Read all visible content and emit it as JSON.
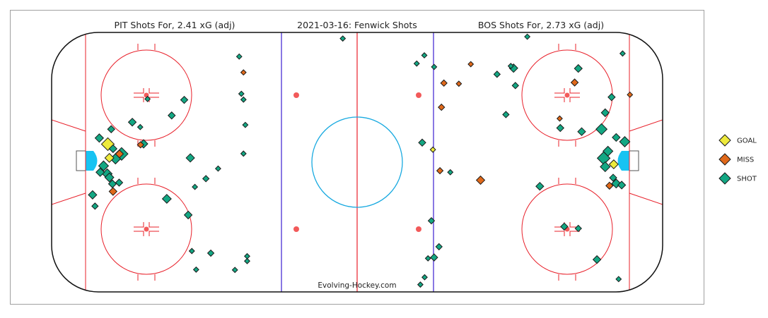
{
  "chart_data": {
    "type": "scatter",
    "titles": {
      "left": "PIT Shots For, 2.41 xG (adj)",
      "center": "2021-03-16:  Fenwick Shots",
      "right": "BOS Shots For, 2.73 xG (adj)"
    },
    "credit": "Evolving-Hockey.com",
    "legend": [
      {
        "label": "GOAL",
        "color": "#eeea3c"
      },
      {
        "label": "MISS",
        "color": "#e0691a"
      },
      {
        "label": "SHOT",
        "color": "#13a783"
      }
    ],
    "colors": {
      "goal": "#eeea3c",
      "miss": "#e0691a",
      "shot": "#13a783",
      "red_line": "#e8202a",
      "blue_line": "#3b1fd0",
      "crease": "#17c3f2",
      "center_circle": "#17a9e0",
      "dot": "#f25a5a"
    },
    "x_range": [
      -100,
      100
    ],
    "y_range": [
      -42.5,
      42.5
    ],
    "series": [
      {
        "name": "PIT",
        "shots": [
          {
            "x": -81.6,
            "y": 5.9,
            "result": "GOAL",
            "xg": 0.16
          },
          {
            "x": -81.1,
            "y": 1.4,
            "result": "GOAL",
            "xg": 0.06
          },
          {
            "x": -77.8,
            "y": 2.7,
            "result": "MISS",
            "xg": 0.04
          },
          {
            "x": -70.9,
            "y": 5.7,
            "result": "MISS",
            "xg": 0.02
          },
          {
            "x": -79.9,
            "y": -9.6,
            "result": "MISS",
            "xg": 0.04
          },
          {
            "x": -77.1,
            "y": 2.7,
            "result": "SHOT",
            "xg": 0.16
          },
          {
            "x": -79.1,
            "y": 1.1,
            "result": "SHOT",
            "xg": 0.09
          },
          {
            "x": -83.0,
            "y": -1.2,
            "result": "SHOT",
            "xg": 0.08
          },
          {
            "x": -84.1,
            "y": -3.3,
            "result": "SHOT",
            "xg": 0.05
          },
          {
            "x": -81.8,
            "y": -3.8,
            "result": "SHOT",
            "xg": 0.08
          },
          {
            "x": -81.1,
            "y": -5.0,
            "result": "SHOT",
            "xg": 0.06
          },
          {
            "x": -80.1,
            "y": -7.1,
            "result": "SHOT",
            "xg": 0.04
          },
          {
            "x": -79.9,
            "y": 4.4,
            "result": "SHOT",
            "xg": 0.04
          },
          {
            "x": -80.5,
            "y": 10.8,
            "result": "SHOT",
            "xg": 0.03
          },
          {
            "x": -84.4,
            "y": 7.9,
            "result": "SHOT",
            "xg": 0.05
          },
          {
            "x": -86.6,
            "y": -10.7,
            "result": "SHOT",
            "xg": 0.05
          },
          {
            "x": -85.8,
            "y": -14.4,
            "result": "SHOT",
            "xg": 0.02
          },
          {
            "x": -77.9,
            "y": -6.7,
            "result": "SHOT",
            "xg": 0.03
          },
          {
            "x": -73.6,
            "y": 13.1,
            "result": "SHOT",
            "xg": 0.04
          },
          {
            "x": -69.9,
            "y": 6.0,
            "result": "SHOT",
            "xg": 0.05
          },
          {
            "x": -71.0,
            "y": 11.5,
            "result": "SHOT",
            "xg": 0.01
          },
          {
            "x": -68.6,
            "y": 20.7,
            "result": "SHOT",
            "xg": 0.01
          },
          {
            "x": -60.7,
            "y": 15.3,
            "result": "SHOT",
            "xg": 0.03
          },
          {
            "x": -56.6,
            "y": 20.4,
            "result": "SHOT",
            "xg": 0.03
          },
          {
            "x": -54.6,
            "y": 1.4,
            "result": "SHOT",
            "xg": 0.05
          },
          {
            "x": -62.3,
            "y": -12.0,
            "result": "SHOT",
            "xg": 0.06
          },
          {
            "x": -55.3,
            "y": -17.3,
            "result": "SHOT",
            "xg": 0.04
          },
          {
            "x": -49.5,
            "y": -5.4,
            "result": "SHOT",
            "xg": 0.02
          },
          {
            "x": -45.5,
            "y": -2.1,
            "result": "SHOT",
            "xg": 0.01
          },
          {
            "x": -53.1,
            "y": -8.1,
            "result": "SHOT",
            "xg": 0.01
          },
          {
            "x": -54.1,
            "y": -29.1,
            "result": "SHOT",
            "xg": 0.01
          },
          {
            "x": -47.9,
            "y": -29.8,
            "result": "SHOT",
            "xg": 0.02
          },
          {
            "x": -52.7,
            "y": -35.2,
            "result": "SHOT",
            "xg": 0.01
          },
          {
            "x": -40.0,
            "y": -35.3,
            "result": "SHOT",
            "xg": 0.01
          },
          {
            "x": -38.6,
            "y": 34.6,
            "result": "SHOT",
            "xg": 0.01
          },
          {
            "x": -37.2,
            "y": 29.4,
            "result": "MISS",
            "xg": 0.01
          },
          {
            "x": -37.9,
            "y": 22.4,
            "result": "SHOT",
            "xg": 0.01
          },
          {
            "x": -37.2,
            "y": 20.5,
            "result": "SHOT",
            "xg": 0.01
          },
          {
            "x": -36.6,
            "y": 12.2,
            "result": "SHOT",
            "xg": 0.01
          },
          {
            "x": -37.2,
            "y": 2.8,
            "result": "SHOT",
            "xg": 0.01
          },
          {
            "x": -36.0,
            "y": -30.8,
            "result": "SHOT",
            "xg": 0.01
          },
          {
            "x": -36.0,
            "y": -32.4,
            "result": "SHOT",
            "xg": 0.01
          },
          {
            "x": -4.7,
            "y": 40.5,
            "result": "SHOT",
            "xg": 0.01
          }
        ]
      },
      {
        "name": "BOS",
        "shots": [
          {
            "x": 84.0,
            "y": -0.7,
            "result": "GOAL",
            "xg": 0.06
          },
          {
            "x": 24.8,
            "y": 4.1,
            "result": "GOAL",
            "xg": 0.01
          },
          {
            "x": 87.6,
            "y": 6.7,
            "result": "SHOT",
            "xg": 0.09
          },
          {
            "x": 80.0,
            "y": 10.8,
            "result": "SHOT",
            "xg": 0.11
          },
          {
            "x": 80.7,
            "y": 1.3,
            "result": "SHOT",
            "xg": 0.16
          },
          {
            "x": 82.1,
            "y": 3.6,
            "result": "SHOT",
            "xg": 0.08
          },
          {
            "x": 81.2,
            "y": -1.5,
            "result": "SHOT",
            "xg": 0.08
          },
          {
            "x": 84.8,
            "y": -7.0,
            "result": "SHOT",
            "xg": 0.06
          },
          {
            "x": 86.6,
            "y": -7.5,
            "result": "SHOT",
            "xg": 0.04
          },
          {
            "x": 84.8,
            "y": 8.1,
            "result": "SHOT",
            "xg": 0.04
          },
          {
            "x": 81.2,
            "y": 16.2,
            "result": "SHOT",
            "xg": 0.04
          },
          {
            "x": 73.5,
            "y": 10.0,
            "result": "SHOT",
            "xg": 0.04
          },
          {
            "x": 72.4,
            "y": 30.7,
            "result": "SHOT",
            "xg": 0.04
          },
          {
            "x": 66.5,
            "y": 11.2,
            "result": "SHOT",
            "xg": 0.03
          },
          {
            "x": 59.8,
            "y": -7.9,
            "result": "SHOT",
            "xg": 0.04
          },
          {
            "x": 67.8,
            "y": -21.1,
            "result": "SHOT",
            "xg": 0.03
          },
          {
            "x": 72.4,
            "y": -21.7,
            "result": "SHOT",
            "xg": 0.02
          },
          {
            "x": 51.2,
            "y": 30.8,
            "result": "SHOT",
            "xg": 0.05
          },
          {
            "x": 30.5,
            "y": -3.3,
            "result": "SHOT",
            "xg": 0.01
          },
          {
            "x": 21.3,
            "y": 6.4,
            "result": "SHOT",
            "xg": 0.03
          },
          {
            "x": 24.3,
            "y": -19.2,
            "result": "SHOT",
            "xg": 0.02
          },
          {
            "x": 26.8,
            "y": -27.7,
            "result": "SHOT",
            "xg": 0.02
          },
          {
            "x": 25.2,
            "y": -31.2,
            "result": "SHOT",
            "xg": 0.03
          },
          {
            "x": 23.2,
            "y": -31.5,
            "result": "SHOT",
            "xg": 0.01
          },
          {
            "x": 22.1,
            "y": -37.7,
            "result": "SHOT",
            "xg": 0.01
          },
          {
            "x": 20.7,
            "y": -40.1,
            "result": "SHOT",
            "xg": 0.01
          },
          {
            "x": 45.8,
            "y": 28.8,
            "result": "SHOT",
            "xg": 0.02
          },
          {
            "x": 48.7,
            "y": 15.6,
            "result": "SHOT",
            "xg": 0.02
          },
          {
            "x": 51.8,
            "y": 25.1,
            "result": "SHOT",
            "xg": 0.02
          },
          {
            "x": 19.5,
            "y": 32.3,
            "result": "SHOT",
            "xg": 0.01
          },
          {
            "x": 22.0,
            "y": 35.0,
            "result": "SHOT",
            "xg": 0.01
          },
          {
            "x": 25.2,
            "y": 31.2,
            "result": "SHOT",
            "xg": 0.01
          },
          {
            "x": 50.3,
            "y": 31.5,
            "result": "SHOT",
            "xg": 0.01
          },
          {
            "x": 55.7,
            "y": 41.1,
            "result": "SHOT",
            "xg": 0.01
          },
          {
            "x": 86.9,
            "y": 35.6,
            "result": "SHOT",
            "xg": 0.01
          },
          {
            "x": 85.6,
            "y": -38.3,
            "result": "SHOT",
            "xg": 0.01
          },
          {
            "x": 78.5,
            "y": -31.9,
            "result": "SHOT",
            "xg": 0.04
          },
          {
            "x": 83.3,
            "y": 21.3,
            "result": "SHOT",
            "xg": 0.03
          },
          {
            "x": 83.8,
            "y": -5.1,
            "result": "SHOT",
            "xg": 0.03
          },
          {
            "x": 28.4,
            "y": 25.9,
            "result": "MISS",
            "xg": 0.02
          },
          {
            "x": 27.6,
            "y": 18.0,
            "result": "MISS",
            "xg": 0.02
          },
          {
            "x": 37.2,
            "y": 32.1,
            "result": "MISS",
            "xg": 0.01
          },
          {
            "x": 33.3,
            "y": 25.7,
            "result": "MISS",
            "xg": 0.01
          },
          {
            "x": 71.2,
            "y": 26.1,
            "result": "MISS",
            "xg": 0.03
          },
          {
            "x": 89.3,
            "y": 22.1,
            "result": "MISS",
            "xg": 0.01
          },
          {
            "x": 66.3,
            "y": 14.3,
            "result": "MISS",
            "xg": 0.01
          },
          {
            "x": 40.4,
            "y": -5.9,
            "result": "MISS",
            "xg": 0.05
          },
          {
            "x": 27.1,
            "y": -2.8,
            "result": "MISS",
            "xg": 0.02
          },
          {
            "x": 82.6,
            "y": -7.7,
            "result": "MISS",
            "xg": 0.03
          }
        ]
      }
    ]
  }
}
